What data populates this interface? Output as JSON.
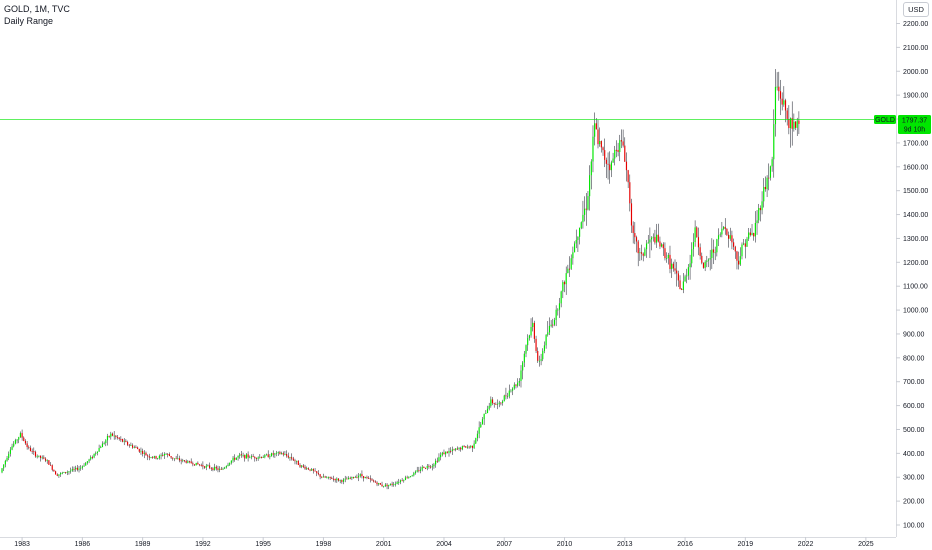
{
  "header": {
    "title": "GOLD, 1M, TVC",
    "subtitle": "Daily Range",
    "currency": "USD"
  },
  "price_tag": {
    "symbol": "GOLD",
    "price": "1797.37",
    "countdown": "9d 10h",
    "color": "#00e600"
  },
  "colors": {
    "up": "#00e600",
    "down": "#e60000",
    "wick": "#131722",
    "axis_text": "#131722",
    "price_line": "#00e600"
  },
  "chart_data": {
    "type": "line",
    "ylim": [
      100,
      2300
    ],
    "xlim": [
      1981.9,
      2026.5
    ],
    "y_ticks": [
      "100.00",
      "200.00",
      "300.00",
      "400.00",
      "500.00",
      "600.00",
      "700.00",
      "800.00",
      "900.00",
      "1000.00",
      "1100.00",
      "1200.00",
      "1300.00",
      "1400.00",
      "1500.00",
      "1600.00",
      "1700.00",
      "1800.00",
      "1900.00",
      "2000.00",
      "2100.00",
      "2200.00"
    ],
    "x_ticks": [
      "1983",
      "1986",
      "1989",
      "1992",
      "1995",
      "1998",
      "2001",
      "2004",
      "2007",
      "2010",
      "2013",
      "2016",
      "2019",
      "2022",
      "2025"
    ],
    "last_price": 1797.37,
    "series": [
      {
        "x": [
          1982.0,
          1982.5,
          1983.0,
          1983.4,
          1983.8,
          1984.3,
          1984.8,
          1985.2,
          1985.6,
          1986.0,
          1986.5,
          1987.0,
          1987.5,
          1987.9,
          1988.3,
          1988.8,
          1989.3,
          1989.8,
          1990.2,
          1990.6,
          1991.0,
          1991.5,
          1992.0,
          1992.5,
          1993.0,
          1993.5,
          1993.9,
          1994.5,
          1995.0,
          1995.5,
          1996.0,
          1996.5,
          1997.0,
          1997.5,
          1998.0,
          1998.5,
          1999.0,
          1999.6,
          1999.9,
          2000.5,
          2001.0,
          2001.5,
          2002.0,
          2002.5,
          2003.0,
          2003.5,
          2004.0,
          2004.5,
          2005.0,
          2005.5,
          2006.0,
          2006.4,
          2006.8,
          2007.3,
          2007.8,
          2008.2,
          2008.5,
          2008.8,
          2009.2,
          2009.6,
          2010.0,
          2010.4,
          2010.8,
          2011.2,
          2011.6,
          2011.7,
          2012.0,
          2012.4,
          2012.7,
          2013.0,
          2013.3,
          2013.5,
          2013.9,
          2014.2,
          2014.6,
          2015.0,
          2015.5,
          2015.9,
          2016.3,
          2016.6,
          2017.0,
          2017.5,
          2018.0,
          2018.4,
          2018.7,
          2019.1,
          2019.5,
          2019.9,
          2020.2,
          2020.4,
          2020.6,
          2020.9,
          2021.2,
          2021.4,
          2021.7
        ],
        "y": [
          320,
          420,
          480,
          420,
          390,
          370,
          310,
          320,
          330,
          340,
          380,
          430,
          480,
          460,
          440,
          420,
          390,
          380,
          400,
          380,
          370,
          360,
          350,
          340,
          330,
          370,
          390,
          385,
          385,
          395,
          400,
          380,
          345,
          330,
          300,
          295,
          285,
          300,
          310,
          285,
          265,
          270,
          290,
          310,
          340,
          350,
          400,
          410,
          425,
          430,
          540,
          620,
          600,
          660,
          700,
          870,
          940,
          760,
          900,
          970,
          1100,
          1220,
          1350,
          1450,
          1780,
          1720,
          1650,
          1600,
          1700,
          1690,
          1500,
          1300,
          1220,
          1280,
          1300,
          1250,
          1170,
          1080,
          1200,
          1340,
          1170,
          1250,
          1350,
          1300,
          1200,
          1300,
          1320,
          1470,
          1560,
          1600,
          1950,
          1880,
          1800,
          1750,
          1797
        ]
      }
    ]
  }
}
